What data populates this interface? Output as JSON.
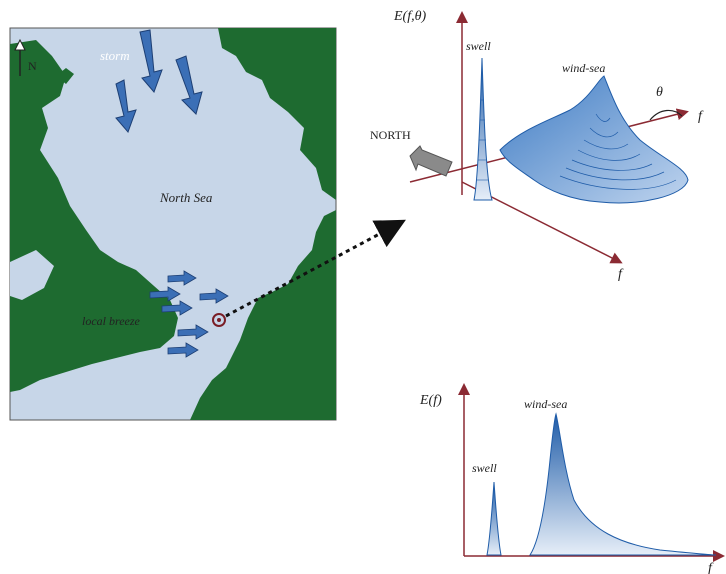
{
  "map": {
    "north_label": "N",
    "storm_label": "storm",
    "sea_label": "North Sea",
    "breeze_label": "local breeze",
    "colors": {
      "water": "#c7d6e8",
      "land": "#1e6b30",
      "arrow": "#3b6fb6"
    }
  },
  "directional_spectrum": {
    "axis_label": "E(f,θ)",
    "swell_label": "swell",
    "windsea_label": "wind-sea",
    "theta_label": "θ",
    "f_label_right": "f",
    "f_label_bottom": "f",
    "north_label": "NORTH"
  },
  "frequency_spectrum": {
    "axis_label": "E(f)",
    "swell_label": "swell",
    "windsea_label": "wind-sea",
    "f_label": "f"
  }
}
